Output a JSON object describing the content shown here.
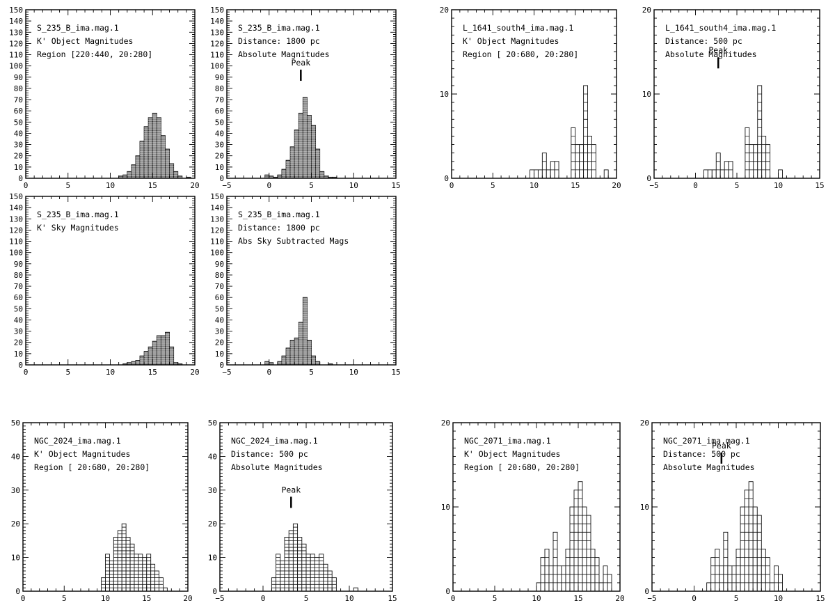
{
  "chart_data": [
    {
      "type": "bar",
      "text_lines": [
        "S_235_B_ima.mag.1",
        "K' Object Magnitudes",
        "Region [220:440, 20:280]"
      ],
      "xlim": [
        0,
        20
      ],
      "xticks": [
        0,
        5,
        10,
        15,
        20
      ],
      "ylim": [
        0,
        150
      ],
      "yticks": [
        0,
        10,
        20,
        30,
        40,
        50,
        60,
        70,
        80,
        90,
        100,
        110,
        120,
        130,
        140,
        150
      ],
      "bin_width": 0.5,
      "bin_starts": [
        10.5,
        11.0,
        11.5,
        12.0,
        12.5,
        13.0,
        13.5,
        14.0,
        14.5,
        15.0,
        15.5,
        16.0,
        16.5,
        17.0,
        17.5,
        18.0,
        18.5,
        19.0
      ],
      "values": [
        0,
        2,
        3,
        6,
        12,
        20,
        33,
        46,
        54,
        58,
        54,
        38,
        26,
        13,
        6,
        2,
        0,
        1
      ],
      "peak_marker": null,
      "grid": false
    },
    {
      "type": "bar",
      "text_lines": [
        "S_235_B_ima.mag.1",
        "Distance: 1800  pc",
        "Absolute Magnitudes"
      ],
      "xlim": [
        -5,
        15
      ],
      "xticks": [
        -5,
        0,
        5,
        10,
        15
      ],
      "ylim": [
        0,
        150
      ],
      "yticks": [
        0,
        10,
        20,
        30,
        40,
        50,
        60,
        70,
        80,
        90,
        100,
        110,
        120,
        130,
        140,
        150
      ],
      "bin_width": 0.5,
      "bin_starts": [
        -0.5,
        0.0,
        0.5,
        1.0,
        1.5,
        2.0,
        2.5,
        3.0,
        3.5,
        4.0,
        4.5,
        5.0,
        5.5,
        6.0,
        6.5,
        7.0,
        7.5
      ],
      "values": [
        3,
        2,
        1,
        3,
        8,
        16,
        28,
        43,
        58,
        72,
        56,
        47,
        26,
        6,
        2,
        1,
        1
      ],
      "peak_marker": {
        "label": "Peak",
        "x": 3.75
      },
      "grid": false
    },
    {
      "type": "bar",
      "text_lines": [
        "L_1641_south4_ima.mag.1",
        "K' Object Magnitudes",
        "Region [ 20:680, 20:280]"
      ],
      "xlim": [
        0,
        20
      ],
      "xticks": [
        0,
        5,
        10,
        15,
        20
      ],
      "ylim": [
        0,
        20
      ],
      "yticks": [
        0,
        10,
        20
      ],
      "bin_width": 0.5,
      "bin_starts": [
        9.5,
        10.0,
        10.5,
        11.0,
        11.5,
        12.0,
        12.5,
        13.0,
        13.5,
        14.0,
        14.5,
        15.0,
        15.5,
        16.0,
        16.5,
        17.0,
        17.5,
        18.0,
        18.5
      ],
      "values": [
        1,
        1,
        1,
        3,
        1,
        2,
        2,
        0,
        0,
        0,
        6,
        4,
        4,
        11,
        5,
        4,
        0,
        0,
        1
      ],
      "peak_marker": null,
      "grid": false
    },
    {
      "type": "bar",
      "text_lines": [
        "L_1641_south4_ima.mag.1",
        "Distance: 500   pc",
        "Absolute Magnitudes"
      ],
      "xlim": [
        -5,
        15
      ],
      "xticks": [
        -5,
        0,
        5,
        10,
        15
      ],
      "ylim": [
        0,
        20
      ],
      "yticks": [
        0,
        10,
        20
      ],
      "bin_width": 0.5,
      "bin_starts": [
        1.0,
        1.5,
        2.0,
        2.5,
        3.0,
        3.5,
        4.0,
        4.5,
        5.0,
        5.5,
        6.0,
        6.5,
        7.0,
        7.5,
        8.0,
        8.5,
        9.0,
        9.5,
        10.0
      ],
      "values": [
        1,
        1,
        1,
        3,
        1,
        2,
        2,
        0,
        0,
        0,
        6,
        4,
        4,
        11,
        5,
        4,
        0,
        0,
        1
      ],
      "peak_marker": {
        "label": "Peak",
        "x": 2.75
      },
      "grid": false
    },
    {
      "type": "bar",
      "text_lines": [
        "S_235_B_ima.mag.1",
        "K' Sky Magnitudes"
      ],
      "xlim": [
        0,
        20
      ],
      "xticks": [
        0,
        5,
        10,
        15,
        20
      ],
      "ylim": [
        0,
        150
      ],
      "yticks": [
        0,
        10,
        20,
        30,
        40,
        50,
        60,
        70,
        80,
        90,
        100,
        110,
        120,
        130,
        140,
        150
      ],
      "bin_width": 0.5,
      "bin_starts": [
        11.5,
        12.0,
        12.5,
        13.0,
        13.5,
        14.0,
        14.5,
        15.0,
        15.5,
        16.0,
        16.5,
        17.0,
        17.5,
        18.0
      ],
      "values": [
        1,
        2,
        3,
        4,
        8,
        12,
        16,
        21,
        26,
        26,
        29,
        16,
        2,
        1
      ],
      "peak_marker": null,
      "grid": false
    },
    {
      "type": "bar",
      "text_lines": [
        "S_235_B_ima.mag.1",
        "Distance: 1800  pc",
        "Abs Sky Subtracted Mags"
      ],
      "xlim": [
        -5,
        15
      ],
      "xticks": [
        -5,
        0,
        5,
        10,
        15
      ],
      "ylim": [
        0,
        150
      ],
      "yticks": [
        0,
        10,
        20,
        30,
        40,
        50,
        60,
        70,
        80,
        90,
        100,
        110,
        120,
        130,
        140,
        150
      ],
      "bin_width": 0.5,
      "bin_starts": [
        -0.5,
        0.0,
        0.5,
        1.0,
        1.5,
        2.0,
        2.5,
        3.0,
        3.5,
        4.0,
        4.5,
        5.0,
        5.5,
        6.0,
        6.5,
        7.0
      ],
      "values": [
        3,
        2,
        0,
        3,
        8,
        15,
        22,
        24,
        38,
        60,
        22,
        8,
        3,
        0,
        0,
        1
      ],
      "peak_marker": null,
      "grid": false
    },
    {
      "type": "bar",
      "text_lines": [
        "NGC_2024_ima.mag.1",
        "K' Object Magnitudes",
        "Region [ 20:680, 20:280]"
      ],
      "xlim": [
        0,
        20
      ],
      "xticks": [
        0,
        5,
        10,
        15,
        20
      ],
      "ylim": [
        0,
        50
      ],
      "yticks": [
        0,
        10,
        20,
        30,
        40,
        50
      ],
      "bin_width": 0.5,
      "bin_starts": [
        9.5,
        10.0,
        10.5,
        11.0,
        11.5,
        12.0,
        12.5,
        13.0,
        13.5,
        14.0,
        14.5,
        15.0,
        15.5,
        16.0,
        16.5,
        17.0
      ],
      "values": [
        4,
        11,
        9,
        16,
        18,
        20,
        16,
        14,
        11,
        11,
        10,
        11,
        8,
        6,
        4,
        1
      ],
      "peak_marker": null,
      "grid": false
    },
    {
      "type": "bar",
      "text_lines": [
        "NGC_2024_ima.mag.1",
        "Distance: 500   pc",
        "Absolute Magnitudes"
      ],
      "xlim": [
        -5,
        15
      ],
      "xticks": [
        -5,
        0,
        5,
        10,
        15
      ],
      "ylim": [
        0,
        50
      ],
      "yticks": [
        0,
        10,
        20,
        30,
        40,
        50
      ],
      "bin_width": 0.5,
      "bin_starts": [
        1.0,
        1.5,
        2.0,
        2.5,
        3.0,
        3.5,
        4.0,
        4.5,
        5.0,
        5.5,
        6.0,
        6.5,
        7.0,
        7.5,
        8.0,
        8.5,
        9.0,
        9.5,
        10.0,
        10.5
      ],
      "values": [
        4,
        11,
        9,
        16,
        18,
        20,
        16,
        14,
        11,
        11,
        10,
        11,
        8,
        6,
        4,
        0,
        0,
        0,
        0,
        1
      ],
      "peak_marker": {
        "label": "Peak",
        "x": 3.25
      },
      "grid": false
    },
    {
      "type": "bar",
      "text_lines": [
        "NGC_2071_ima.mag.1",
        "K' Object Magnitudes",
        "Region [ 20:680, 20:280]"
      ],
      "xlim": [
        0,
        20
      ],
      "xticks": [
        0,
        5,
        10,
        15,
        20
      ],
      "ylim": [
        0,
        20
      ],
      "yticks": [
        0,
        10,
        20
      ],
      "bin_width": 0.5,
      "bin_starts": [
        10.0,
        10.5,
        11.0,
        11.5,
        12.0,
        12.5,
        13.0,
        13.5,
        14.0,
        14.5,
        15.0,
        15.5,
        16.0,
        16.5,
        17.0,
        17.5,
        18.0,
        18.5
      ],
      "values": [
        1,
        4,
        5,
        3,
        7,
        3,
        3,
        5,
        10,
        12,
        13,
        10,
        9,
        5,
        4,
        1,
        3,
        2
      ],
      "peak_marker": null,
      "grid": false
    },
    {
      "type": "bar",
      "text_lines": [
        "NGC_2071_ima.mag.1",
        "Distance: 500   pc",
        "Absolute Magnitudes"
      ],
      "xlim": [
        -5,
        15
      ],
      "xticks": [
        -5,
        0,
        5,
        10,
        15
      ],
      "ylim": [
        0,
        20
      ],
      "yticks": [
        0,
        10,
        20
      ],
      "bin_width": 0.5,
      "bin_starts": [
        1.5,
        2.0,
        2.5,
        3.0,
        3.5,
        4.0,
        4.5,
        5.0,
        5.5,
        6.0,
        6.5,
        7.0,
        7.5,
        8.0,
        8.5,
        9.0,
        9.5,
        10.0
      ],
      "values": [
        1,
        4,
        5,
        3,
        7,
        3,
        3,
        5,
        10,
        12,
        13,
        10,
        9,
        5,
        4,
        1,
        3,
        2
      ],
      "peak_marker": {
        "label": "Peak",
        "x": 3.25
      },
      "grid": false
    }
  ]
}
